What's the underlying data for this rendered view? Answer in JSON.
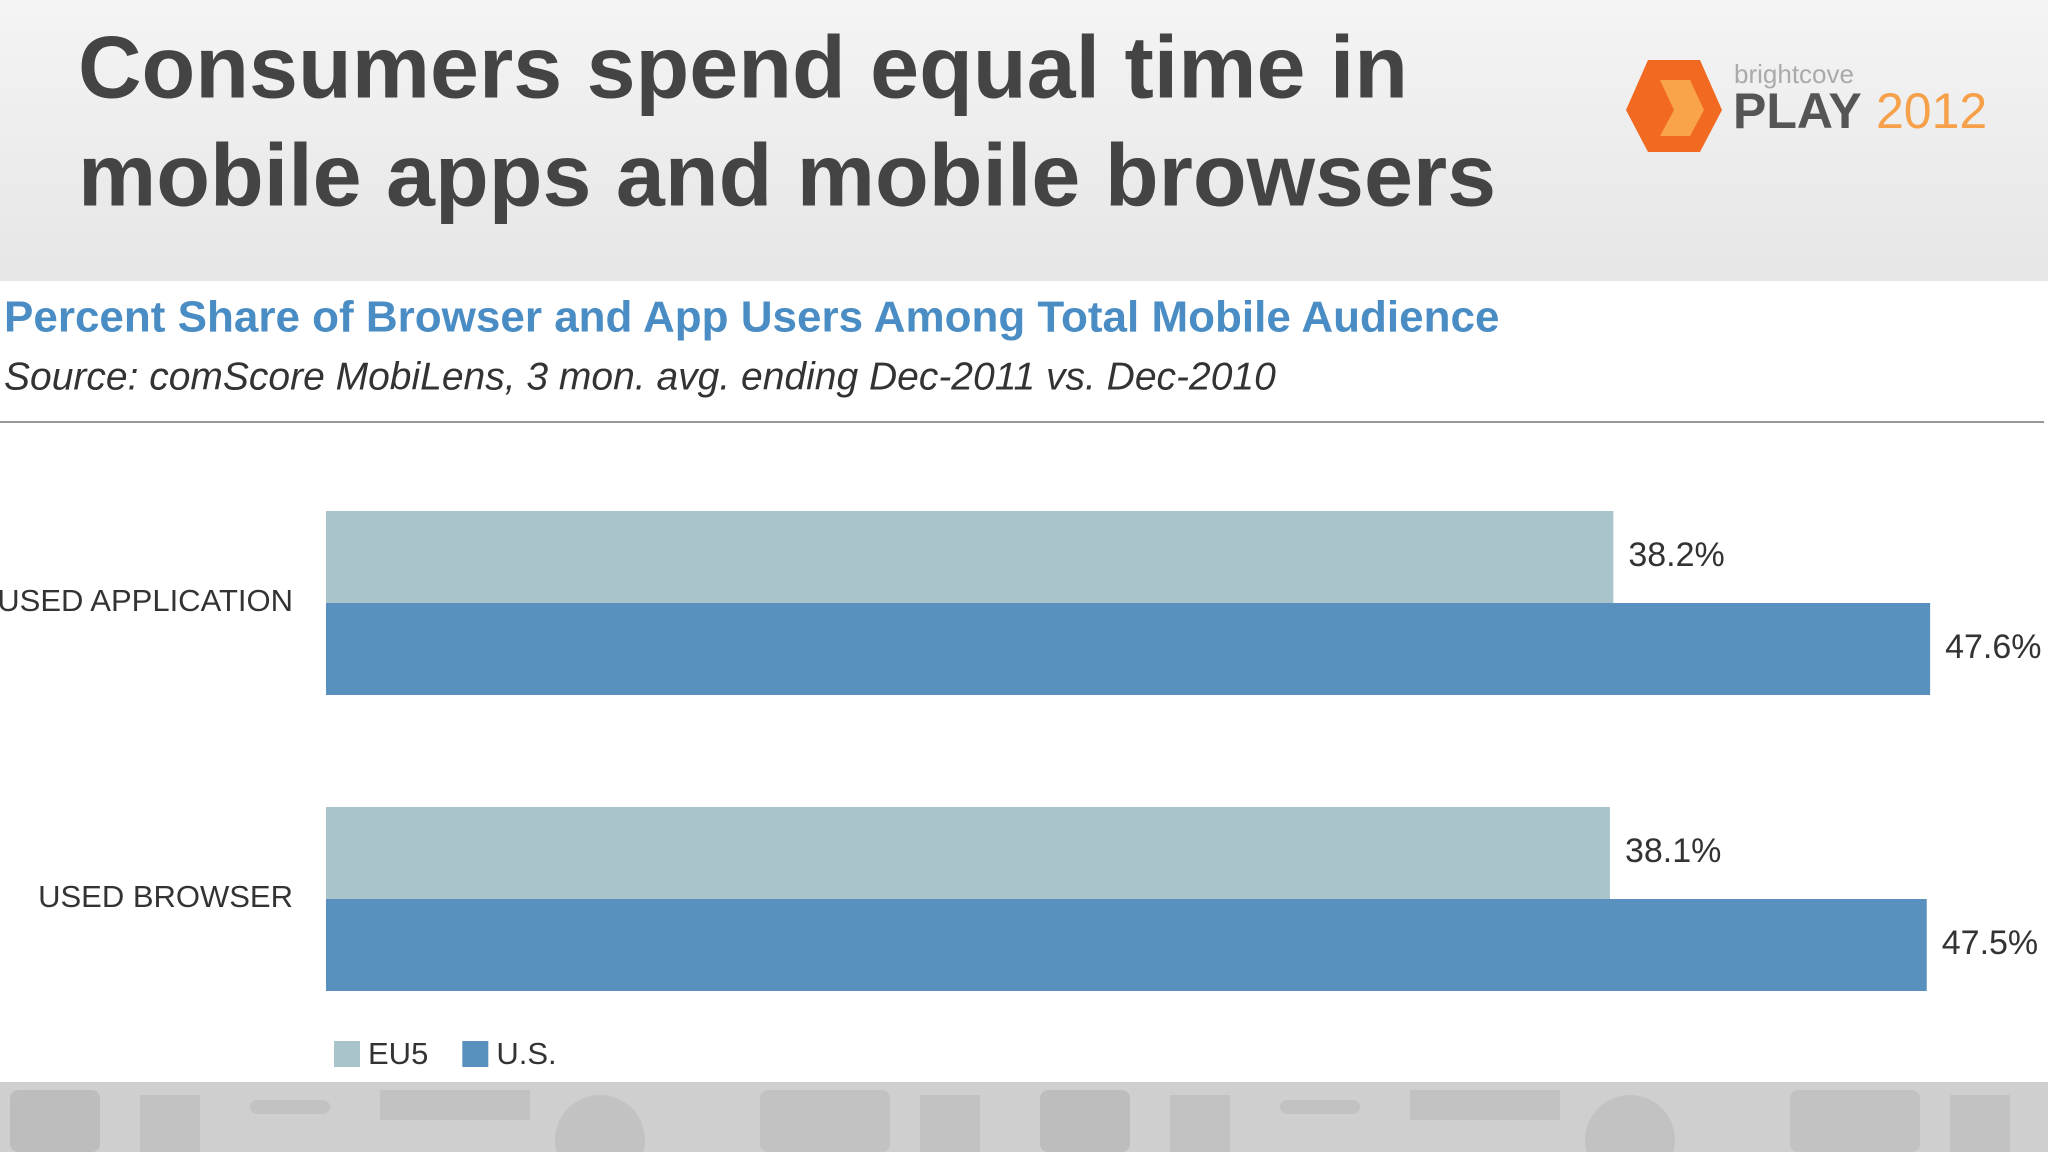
{
  "slide": {
    "title_lines": [
      "Consumers spend equal time in",
      "mobile apps and mobile browsers"
    ]
  },
  "logo": {
    "brand": "brightcove",
    "name": "PLAY",
    "year": "2012"
  },
  "chart_data": {
    "type": "hbar",
    "title": "Percent Share of Browser and App Users Among Total Mobile Audience",
    "subtitle": "Source: comScore MobiLens, 3 mon. avg. ending Dec-2011 vs. Dec-2010",
    "categories": [
      "USED APPLICATION",
      "USED BROWSER"
    ],
    "series": [
      {
        "name": "EU5",
        "color": "#a9c4cb",
        "values": [
          38.2,
          38.1
        ],
        "value_labels": [
          "38.2%",
          "38.1%"
        ]
      },
      {
        "name": "U.S.",
        "color": "#5a90bd",
        "values": [
          47.6,
          47.5
        ],
        "value_labels": [
          "47.6%",
          "47.5%"
        ]
      }
    ],
    "xlim": [
      0,
      50
    ],
    "legend": "bottom-left"
  }
}
